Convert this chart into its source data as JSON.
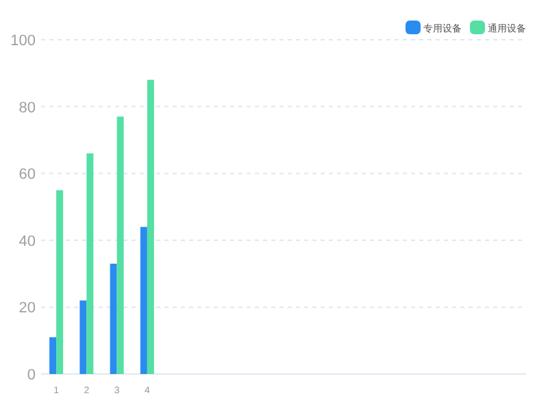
{
  "chart_data": {
    "type": "bar",
    "categories": [
      "1",
      "2",
      "3",
      "4",
      null,
      null,
      null,
      null,
      null,
      null,
      null,
      null,
      null,
      null,
      null,
      null
    ],
    "series": [
      {
        "name": "专用设备",
        "color": "#2a8cf0",
        "values": [
          11,
          22,
          33,
          44,
          null,
          null,
          null,
          null,
          null,
          null,
          null,
          null,
          null,
          null,
          null,
          null
        ]
      },
      {
        "name": "通用设备",
        "color": "#55dfa5",
        "values": [
          55,
          66,
          77,
          88,
          null,
          null,
          null,
          null,
          null,
          null,
          null,
          null,
          null,
          null,
          null,
          null
        ]
      }
    ],
    "ylim": [
      0,
      100
    ],
    "yticks": [
      0,
      20,
      40,
      60,
      80,
      100
    ],
    "grid": "y",
    "legend": "top right"
  }
}
